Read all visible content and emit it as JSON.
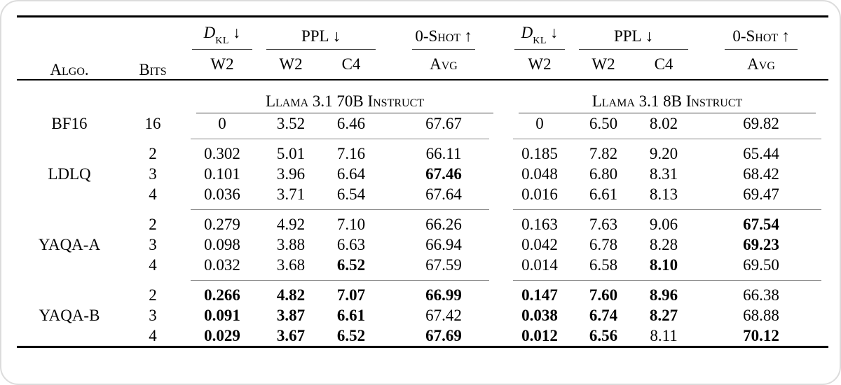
{
  "colors": {
    "text": "#000000",
    "rule": "#000000",
    "frame": "#dcdcdc"
  },
  "table": {
    "header": {
      "algo": "Algo.",
      "bits": "Bits",
      "dkl": {
        "d": "D",
        "sub": "KL",
        "arrow": "↓",
        "col": "W2"
      },
      "ppl": {
        "label": "PPL",
        "arrow": "↓",
        "col1": "W2",
        "col2": "C4"
      },
      "zshot": {
        "label": "0-Shot",
        "arrow": "↑",
        "col": "Avg"
      }
    },
    "models": [
      "Llama 3.1 70B Instruct",
      "Llama 3.1 8B Instruct"
    ],
    "sections": [
      {
        "algo": "BF16",
        "rows": [
          {
            "bits": "16",
            "values": [
              "0",
              "3.52",
              "6.46",
              "67.67",
              "0",
              "6.50",
              "8.02",
              "69.82"
            ],
            "bold": [
              0,
              0,
              0,
              0,
              0,
              0,
              0,
              0
            ]
          }
        ]
      },
      {
        "algo": "LDLQ",
        "rows": [
          {
            "bits": "2",
            "values": [
              "0.302",
              "5.01",
              "7.16",
              "66.11",
              "0.185",
              "7.82",
              "9.20",
              "65.44"
            ],
            "bold": [
              0,
              0,
              0,
              0,
              0,
              0,
              0,
              0
            ]
          },
          {
            "bits": "3",
            "values": [
              "0.101",
              "3.96",
              "6.64",
              "67.46",
              "0.048",
              "6.80",
              "8.31",
              "68.42"
            ],
            "bold": [
              0,
              0,
              0,
              1,
              0,
              0,
              0,
              0
            ]
          },
          {
            "bits": "4",
            "values": [
              "0.036",
              "3.71",
              "6.54",
              "67.64",
              "0.016",
              "6.61",
              "8.13",
              "69.47"
            ],
            "bold": [
              0,
              0,
              0,
              0,
              0,
              0,
              0,
              0
            ]
          }
        ]
      },
      {
        "algo": "YAQA-A",
        "rows": [
          {
            "bits": "2",
            "values": [
              "0.279",
              "4.92",
              "7.10",
              "66.26",
              "0.163",
              "7.63",
              "9.06",
              "67.54"
            ],
            "bold": [
              0,
              0,
              0,
              0,
              0,
              0,
              0,
              1
            ]
          },
          {
            "bits": "3",
            "values": [
              "0.098",
              "3.88",
              "6.63",
              "66.94",
              "0.042",
              "6.78",
              "8.28",
              "69.23"
            ],
            "bold": [
              0,
              0,
              0,
              0,
              0,
              0,
              0,
              1
            ]
          },
          {
            "bits": "4",
            "values": [
              "0.032",
              "3.68",
              "6.52",
              "67.59",
              "0.014",
              "6.58",
              "8.10",
              "69.50"
            ],
            "bold": [
              0,
              0,
              1,
              0,
              0,
              0,
              1,
              0
            ]
          }
        ]
      },
      {
        "algo": "YAQA-B",
        "rows": [
          {
            "bits": "2",
            "values": [
              "0.266",
              "4.82",
              "7.07",
              "66.99",
              "0.147",
              "7.60",
              "8.96",
              "66.38"
            ],
            "bold": [
              1,
              1,
              1,
              1,
              1,
              1,
              1,
              0
            ]
          },
          {
            "bits": "3",
            "values": [
              "0.091",
              "3.87",
              "6.61",
              "67.42",
              "0.038",
              "6.74",
              "8.27",
              "68.88"
            ],
            "bold": [
              1,
              1,
              1,
              0,
              1,
              1,
              1,
              0
            ]
          },
          {
            "bits": "4",
            "values": [
              "0.029",
              "3.67",
              "6.52",
              "67.69",
              "0.012",
              "6.56",
              "8.11",
              "70.12"
            ],
            "bold": [
              1,
              1,
              1,
              1,
              1,
              1,
              0,
              1
            ]
          }
        ]
      }
    ]
  }
}
